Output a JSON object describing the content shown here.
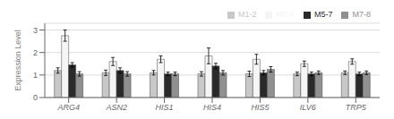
{
  "chart_data": {
    "type": "bar",
    "categories": [
      "ARG4",
      "ASN2",
      "HIS1",
      "HIS4",
      "HIS5",
      "ILV6",
      "TRP5"
    ],
    "series": [
      {
        "name": "M1-2",
        "color": "#c8c8c8",
        "values": [
          1.2,
          1.1,
          1.1,
          1.05,
          1.05,
          1.05,
          1.1
        ],
        "errors": [
          0.12,
          0.12,
          0.1,
          0.1,
          0.12,
          0.08,
          0.08
        ]
      },
      {
        "name": "M2-8",
        "color": "#f5f5f5",
        "values": [
          2.75,
          1.6,
          1.7,
          1.85,
          1.7,
          1.5,
          1.6
        ],
        "errors": [
          0.25,
          0.18,
          0.15,
          0.35,
          0.22,
          0.12,
          0.12
        ]
      },
      {
        "name": "M5-7",
        "color": "#2a2a2a",
        "values": [
          1.45,
          1.2,
          1.05,
          1.4,
          1.1,
          1.05,
          1.05
        ],
        "errors": [
          0.1,
          0.12,
          0.08,
          0.12,
          0.1,
          0.08,
          0.08
        ]
      },
      {
        "name": "M7-8",
        "color": "#909090",
        "values": [
          1.05,
          1.05,
          1.05,
          1.1,
          1.25,
          1.1,
          1.1
        ],
        "errors": [
          0.1,
          0.1,
          0.08,
          0.1,
          0.12,
          0.08,
          0.08
        ]
      }
    ],
    "ylabel": "Expression Level",
    "ylim": [
      0,
      3.3
    ],
    "yticks": [
      0,
      1,
      2,
      3
    ],
    "grid": true,
    "legend": "upper right"
  }
}
